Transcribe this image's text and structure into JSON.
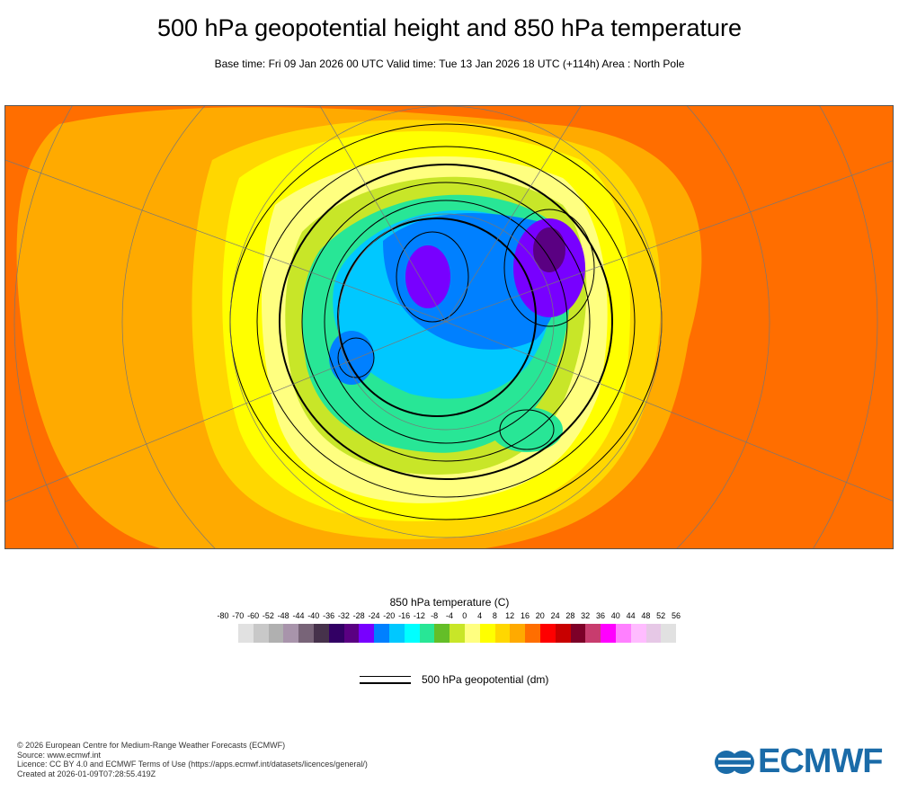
{
  "title": "500 hPa geopotential height and 850 hPa temperature",
  "subtitle": "Base time: Fri 09 Jan 2026 00 UTC Valid time: Tue 13 Jan 2026 18 UTC (+114h) Area : North Pole",
  "colorbar": {
    "title": "850 hPa temperature (C)",
    "labels": [
      "-80",
      "-70",
      "-60",
      "-52",
      "-48",
      "-44",
      "-40",
      "-36",
      "-32",
      "-28",
      "-24",
      "-20",
      "-16",
      "-12",
      "-8",
      "-4",
      "0",
      "4",
      "8",
      "12",
      "16",
      "20",
      "24",
      "28",
      "32",
      "36",
      "40",
      "44",
      "48",
      "52",
      "56"
    ],
    "colors": [
      "#e1e1e1",
      "#c8c8c8",
      "#b0b0b0",
      "#a894ab",
      "#786478",
      "#46324b",
      "#320064",
      "#5a0082",
      "#7800ff",
      "#0080ff",
      "#00c8ff",
      "#00ffff",
      "#28e696",
      "#64be28",
      "#c8e628",
      "#ffff80",
      "#ffff00",
      "#ffd700",
      "#ffaa00",
      "#ff6e00",
      "#ff0000",
      "#c80000",
      "#7d0028",
      "#c83c6e",
      "#ff00ff",
      "#ff80ff",
      "#ffbcff",
      "#e6c8e6",
      "#e1e1e1"
    ]
  },
  "legend": {
    "label": "500 hPa geopotential (dm)"
  },
  "footer": {
    "line1": "© 2026 European Centre for Medium-Range Weather Forecasts (ECMWF)",
    "line2": "Source: www.ecmwf.int",
    "line3": "Licence: CC BY 4.0 and ECMWF Terms of Use (https://apps.ecmwf.int/datasets/licences/general/)",
    "line4": "Created at 2026-01-09T07:28:55.419Z"
  },
  "logo": {
    "text": "ECMWF"
  }
}
